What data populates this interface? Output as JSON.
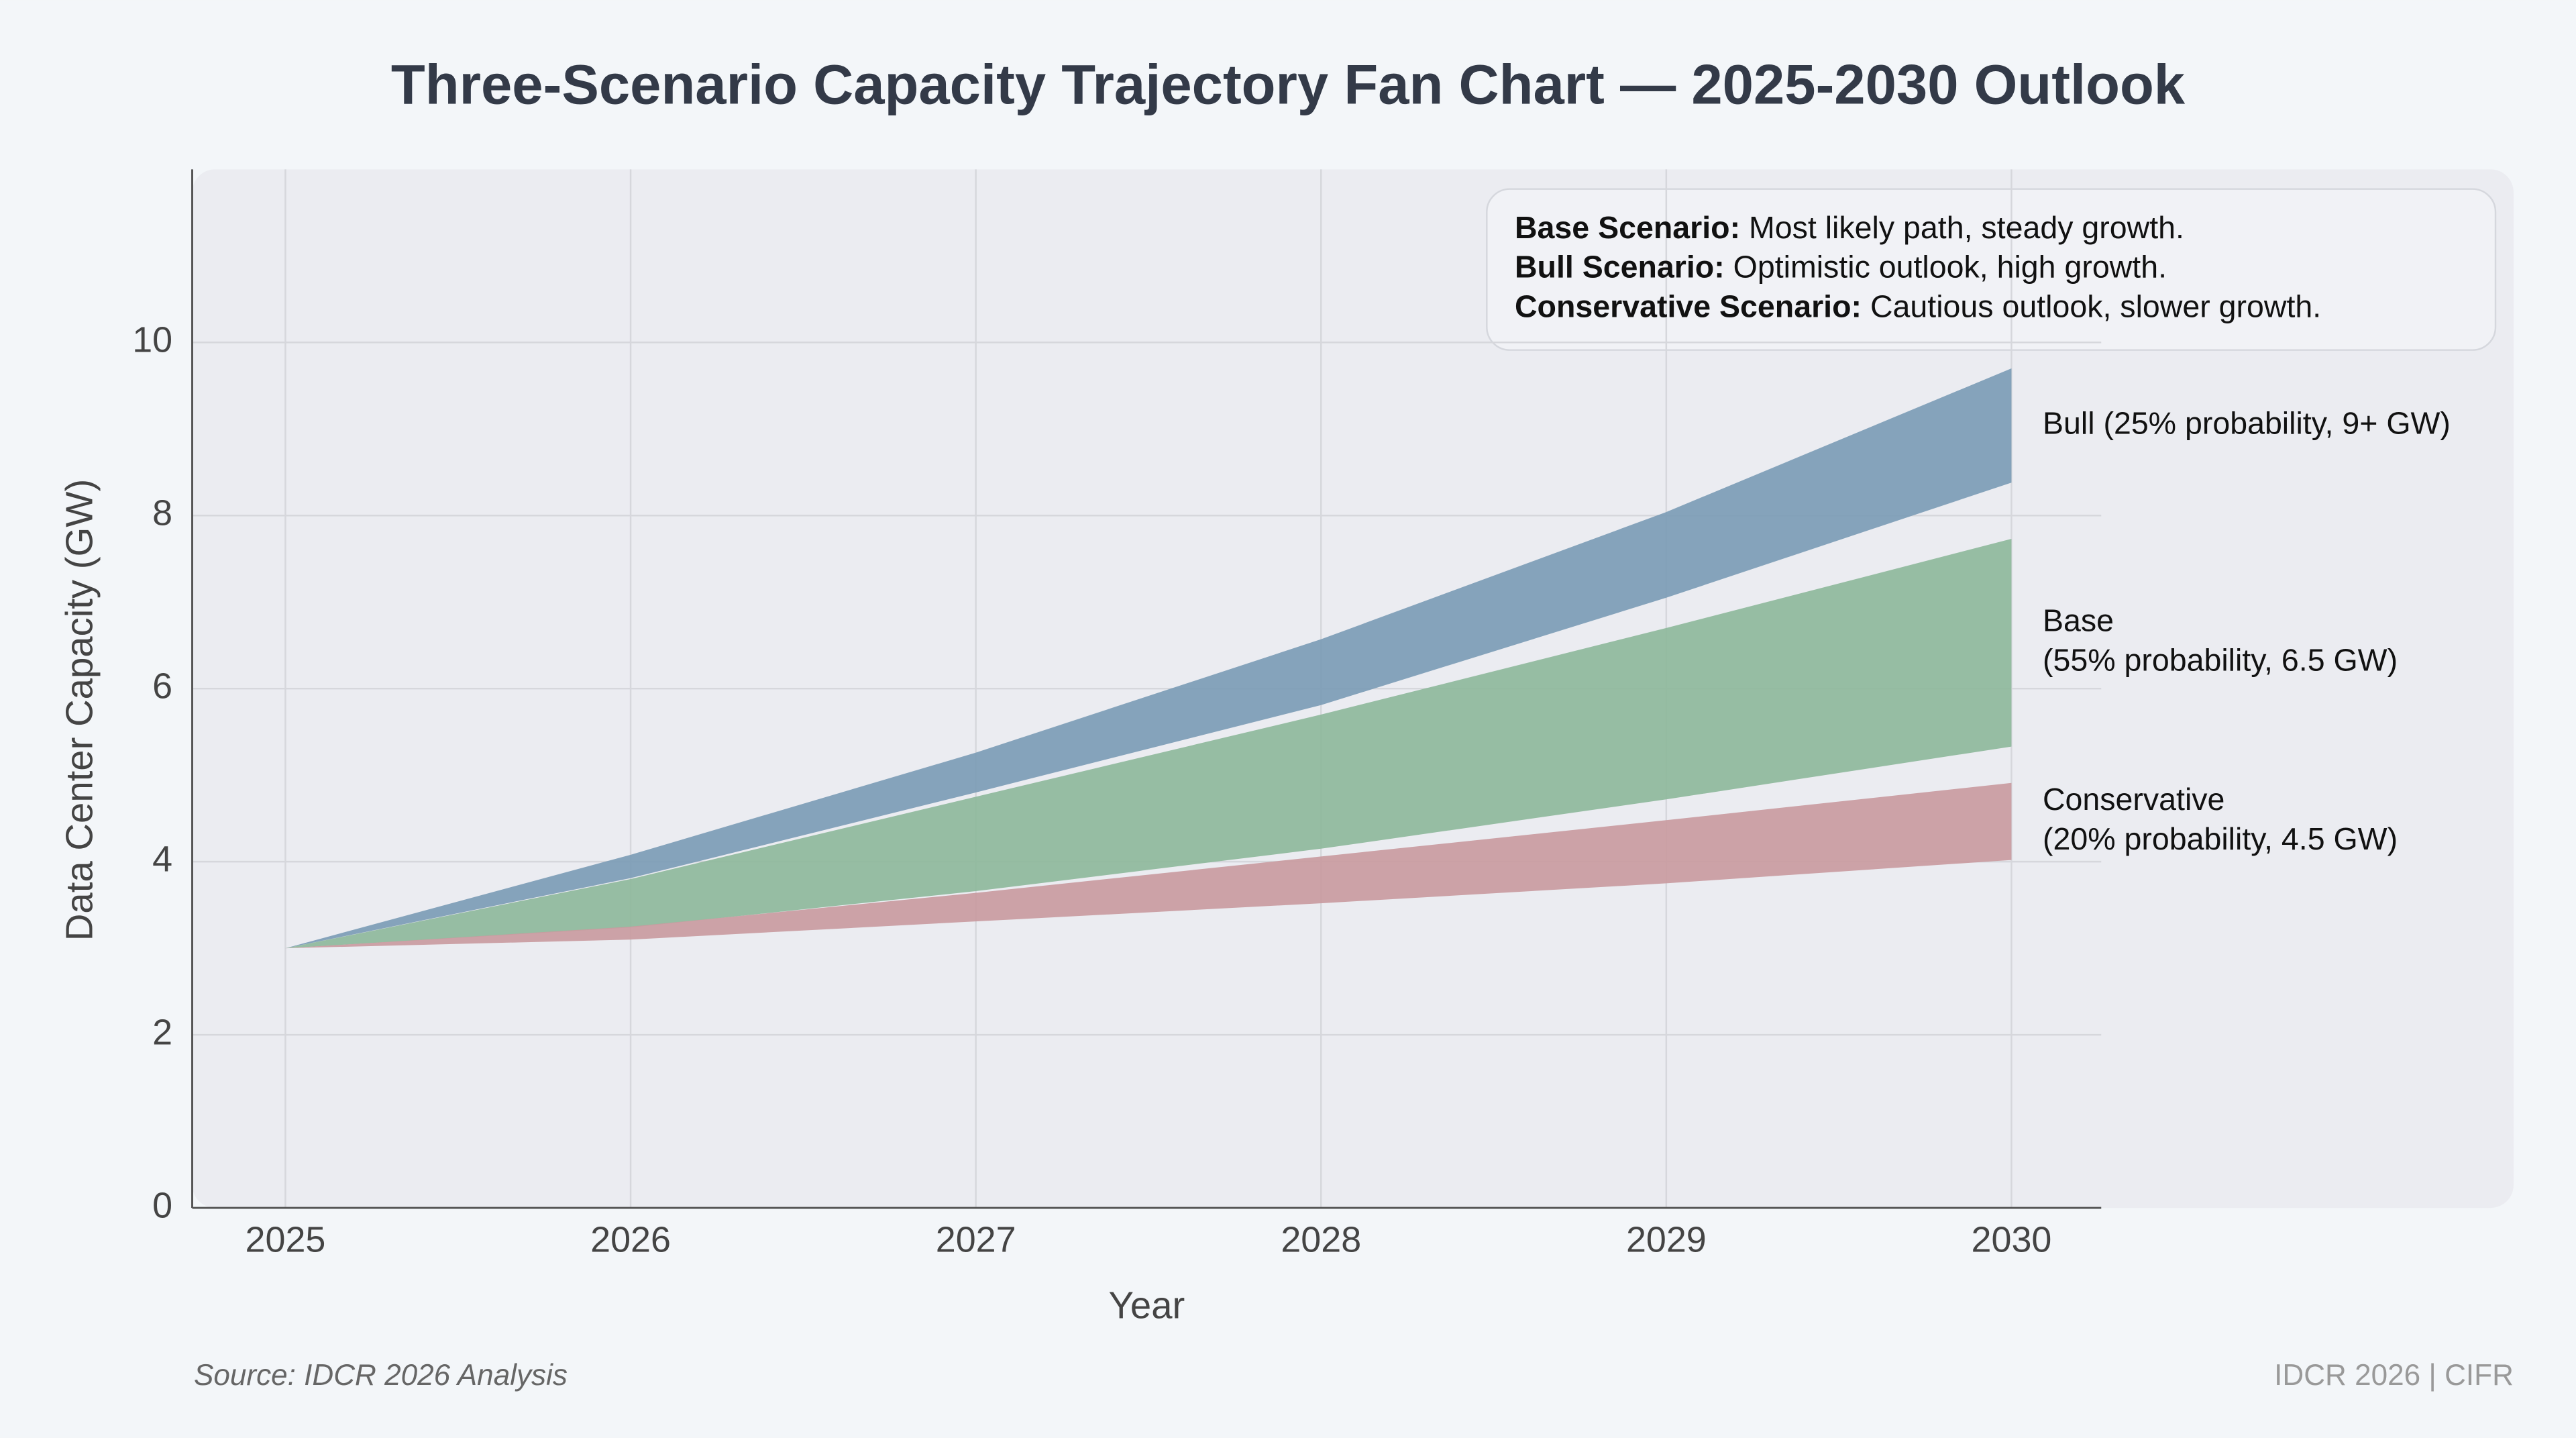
{
  "chart_data": {
    "type": "fan",
    "title": "Three-Scenario Capacity Trajectory Fan Chart — 2025-2030 Outlook",
    "xlabel": "Year",
    "ylabel": "Data Center Capacity (GW)",
    "x": [
      2025,
      2026,
      2027,
      2028,
      2029,
      2030
    ],
    "xlim": [
      2024.73,
      2030.26
    ],
    "xticks": [
      2025,
      2026,
      2027,
      2028,
      2029,
      2030
    ],
    "ylim": [
      0,
      12
    ],
    "yticks": [
      0,
      2,
      4,
      6,
      8,
      10
    ],
    "grid": true,
    "series": [
      {
        "name": "Bull",
        "color": "#7a9bb5",
        "label": [
          "Bull (25% probability, 9+ GW)"
        ],
        "lower": [
          3.0,
          3.81,
          4.8,
          5.81,
          7.05,
          8.38
        ],
        "upper": [
          3.0,
          4.08,
          5.26,
          6.57,
          8.04,
          9.7
        ]
      },
      {
        "name": "Base",
        "color": "#8db89a",
        "label": [
          "Base",
          "(55% probability, 6.5 GW)"
        ],
        "lower": [
          3.0,
          3.24,
          3.66,
          4.15,
          4.72,
          5.33
        ],
        "upper": [
          3.0,
          3.8,
          4.75,
          5.7,
          6.7,
          7.73
        ]
      },
      {
        "name": "Conservative",
        "color": "#c99a9e",
        "label": [
          "Conservative",
          "(20% probability, 4.5 GW)"
        ],
        "lower": [
          3.0,
          3.1,
          3.31,
          3.52,
          3.75,
          4.02
        ],
        "upper": [
          3.0,
          3.25,
          3.64,
          4.06,
          4.48,
          4.91
        ]
      }
    ],
    "notes": [
      {
        "bold": "Base Scenario:",
        "text": "Most likely path, steady growth."
      },
      {
        "bold": "Bull Scenario:",
        "text": "Optimistic outlook, high growth."
      },
      {
        "bold": "Conservative Scenario:",
        "text": "Cautious outlook, slower growth."
      }
    ],
    "source": "Source: IDCR 2026 Analysis",
    "brand": "IDCR 2026 | CIFR"
  }
}
